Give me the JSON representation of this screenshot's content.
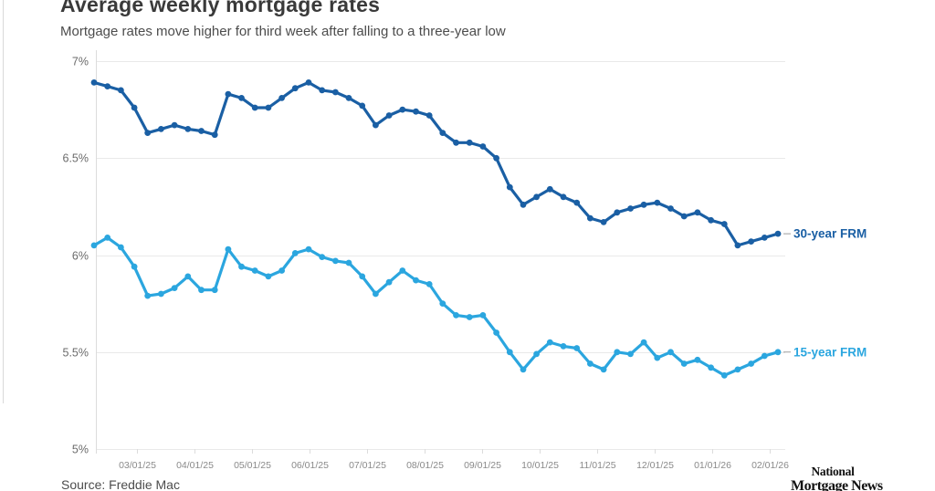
{
  "header": {
    "title": "Average weekly mortgage rates",
    "subtitle": "Mortgage rates move higher for third week after falling to a three-year low"
  },
  "chart_data": {
    "type": "line",
    "title": "Average weekly mortgage rates",
    "subtitle": "Mortgage rates move higher for third week after falling to a three-year low",
    "frequency": "weekly",
    "start_date": "02/06/25",
    "end_date": "02/05/26",
    "ylim": [
      5,
      7
    ],
    "y_tick_values": [
      7,
      6.5,
      6,
      5.5,
      5
    ],
    "y_tick_labels": [
      "7%",
      "6.5%",
      "6%",
      "5.5%",
      "5%"
    ],
    "x_tick_labels": [
      "03/01/25",
      "04/01/25",
      "05/01/25",
      "06/01/25",
      "07/01/25",
      "08/01/25",
      "09/01/25",
      "10/01/25",
      "11/01/25",
      "12/01/25",
      "01/01/26",
      "02/01/26"
    ],
    "grid": "horizontal",
    "legend_position": "right-of-last-point",
    "series": [
      {
        "name": "30-year FRM",
        "color": "#1A5FA4",
        "values": [
          6.89,
          6.87,
          6.85,
          6.76,
          6.63,
          6.65,
          6.67,
          6.65,
          6.64,
          6.62,
          6.83,
          6.81,
          6.76,
          6.76,
          6.81,
          6.86,
          6.89,
          6.85,
          6.84,
          6.81,
          6.77,
          6.67,
          6.72,
          6.75,
          6.74,
          6.72,
          6.63,
          6.58,
          6.58,
          6.56,
          6.5,
          6.35,
          6.26,
          6.3,
          6.34,
          6.3,
          6.27,
          6.19,
          6.17,
          6.22,
          6.24,
          6.26,
          6.27,
          6.24,
          6.2,
          6.22,
          6.18,
          6.16,
          6.05,
          6.07,
          6.09,
          6.11
        ]
      },
      {
        "name": "15-year FRM",
        "color": "#2BA6DF",
        "values": [
          6.05,
          6.09,
          6.04,
          5.94,
          5.79,
          5.8,
          5.83,
          5.89,
          5.82,
          5.82,
          6.03,
          5.94,
          5.92,
          5.89,
          5.92,
          6.01,
          6.03,
          5.99,
          5.97,
          5.96,
          5.89,
          5.8,
          5.86,
          5.92,
          5.87,
          5.85,
          5.75,
          5.69,
          5.68,
          5.69,
          5.6,
          5.5,
          5.41,
          5.49,
          5.55,
          5.53,
          5.52,
          5.44,
          5.41,
          5.5,
          5.49,
          5.55,
          5.47,
          5.5,
          5.44,
          5.46,
          5.42,
          5.38,
          5.41,
          5.44,
          5.48,
          5.5
        ]
      }
    ]
  },
  "footer": {
    "source": "Source: Freddie Mac",
    "logo_line1": "National",
    "logo_line2": "Mortgage News"
  },
  "colors": {
    "series_30yr": "#1A5FA4",
    "series_15yr": "#2BA6DF",
    "gridline": "#e9e9e9",
    "axis_line": "#dcdcdc",
    "y_label": "#6b6b6b",
    "x_label": "#8a8a8a",
    "title": "#3a3a3a",
    "subtitle": "#4c4c4c"
  }
}
